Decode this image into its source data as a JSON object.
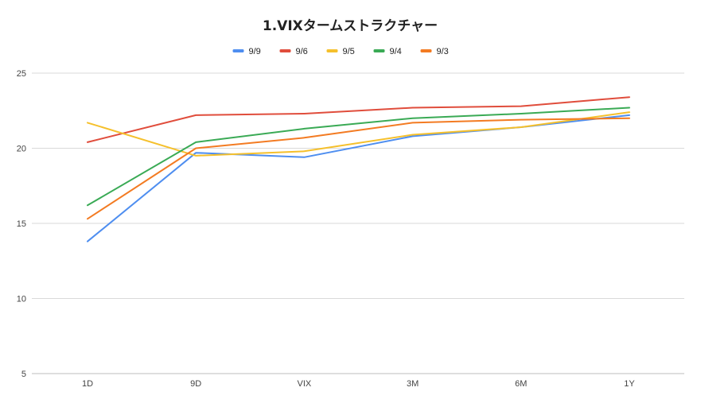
{
  "chart_data": {
    "type": "line",
    "title": "1.VIXタームストラクチャー",
    "xlabel": "",
    "ylabel": "",
    "categories": [
      "1D",
      "9D",
      "VIX",
      "3M",
      "6M",
      "1Y"
    ],
    "ylim": [
      5,
      25
    ],
    "yticks": [
      5,
      10,
      15,
      20,
      25
    ],
    "grid": true,
    "legend_position": "top",
    "series": [
      {
        "name": "9/9",
        "color": "#4e8ef0",
        "values": [
          13.8,
          19.7,
          19.4,
          20.8,
          21.4,
          22.2
        ]
      },
      {
        "name": "9/6",
        "color": "#e04d3c",
        "values": [
          20.4,
          22.2,
          22.3,
          22.7,
          22.8,
          23.4
        ]
      },
      {
        "name": "9/5",
        "color": "#f5c02c",
        "values": [
          21.7,
          19.5,
          19.8,
          20.9,
          21.4,
          22.4
        ]
      },
      {
        "name": "9/4",
        "color": "#3aaa55",
        "values": [
          16.2,
          20.4,
          21.3,
          22.0,
          22.3,
          22.7
        ]
      },
      {
        "name": "9/3",
        "color": "#f37b22",
        "values": [
          15.3,
          20.0,
          20.7,
          21.7,
          21.9,
          22.0
        ]
      }
    ]
  }
}
